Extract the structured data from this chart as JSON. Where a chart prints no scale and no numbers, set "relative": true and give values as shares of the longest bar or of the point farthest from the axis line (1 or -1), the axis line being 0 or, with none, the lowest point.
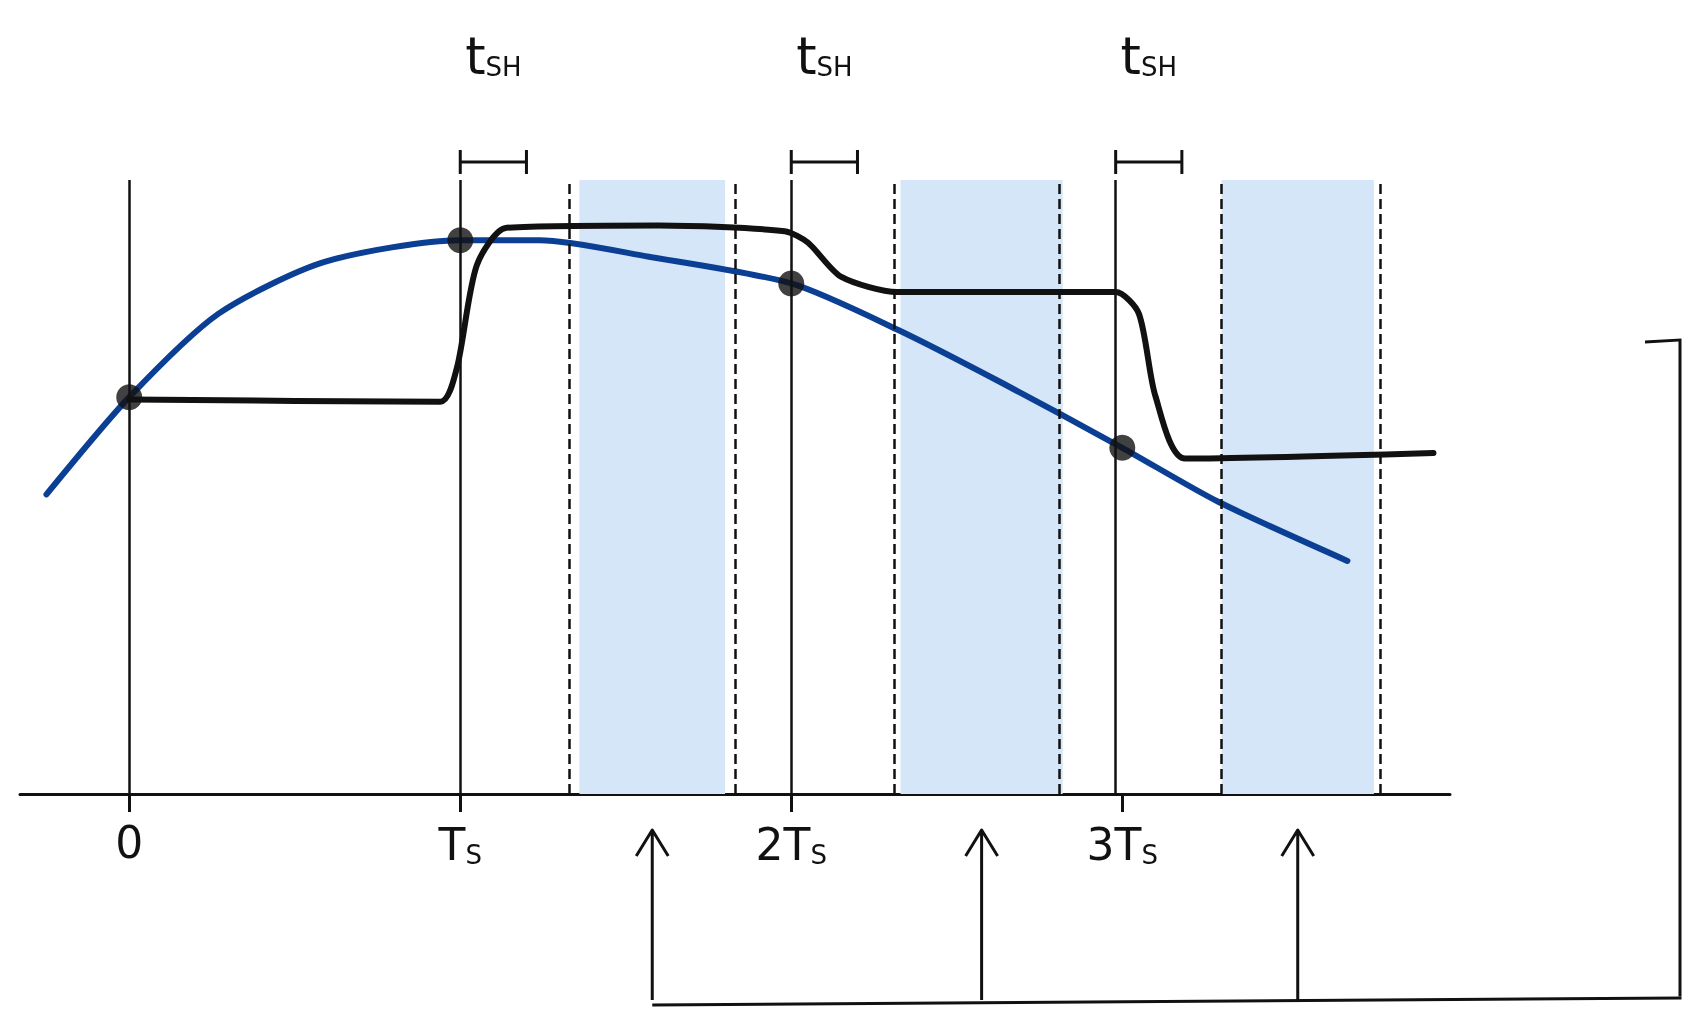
{
  "chart_data": {
    "type": "line",
    "relative": true,
    "grid": false,
    "marker": "none",
    "xlim": [
      -0.33,
      3.99
    ],
    "xticks": [
      {
        "value": 0,
        "label": "0"
      },
      {
        "value": 1,
        "label": "T$_{S}$"
      },
      {
        "value": 2,
        "label": "2T$_{S}$"
      },
      {
        "value": 3,
        "label": "3T$_{S}$"
      }
    ],
    "series": [
      {
        "color": "#0b3f94",
        "x": [
          -0.25,
          0,
          0.27,
          0.59,
          1.0,
          1.24,
          1.57,
          2.0,
          2.32,
          2.64,
          3.0,
          3.29,
          3.68
        ],
        "values": [
          0.527,
          0.698,
          0.845,
          0.936,
          0.974,
          0.974,
          0.945,
          0.898,
          0.817,
          0.722,
          0.609,
          0.514,
          0.41
        ]
      },
      {
        "color": "#111111",
        "x": [
          0,
          0.94,
          0.99,
          1.05,
          1.14,
          1.6,
          1.98,
          2.05,
          2.15,
          2.32,
          2.98,
          3.05,
          3.1,
          3.19,
          3.94
        ],
        "values": [
          0.694,
          0.69,
          0.75,
          0.93,
          0.996,
          1.0,
          0.99,
          0.97,
          0.91,
          0.883,
          0.883,
          0.845,
          0.7,
          0.59,
          0.6
        ]
      },
      {
        "type": "scatter",
        "marker": "circle",
        "color": "#111111",
        "x": [
          0,
          1,
          2,
          3
        ],
        "values": [
          0.698,
          0.974,
          0.898,
          0.609
        ]
      }
    ],
    "ref_lines": [
      {
        "axis": "x",
        "value": 0,
        "line_style": "solid"
      },
      {
        "axis": "x",
        "value": 1,
        "line_style": "solid"
      },
      {
        "axis": "x",
        "value": 2,
        "line_style": "solid"
      },
      {
        "axis": "x",
        "value": 2.98,
        "line_style": "solid"
      },
      {
        "axis": "x",
        "value": 1.33,
        "line_style": "dashed"
      },
      {
        "axis": "x",
        "value": 1.83,
        "line_style": "dashed"
      },
      {
        "axis": "x",
        "value": 2.31,
        "line_style": "dashed"
      },
      {
        "axis": "x",
        "value": 2.81,
        "line_style": "dashed"
      },
      {
        "axis": "x",
        "value": 3.3,
        "line_style": "dashed"
      },
      {
        "axis": "x",
        "value": 3.78,
        "line_style": "dashed"
      }
    ],
    "bands": [
      {
        "axis": "x",
        "from": 1.36,
        "to": 1.8,
        "color": "#d4e6f7"
      },
      {
        "axis": "x",
        "from": 2.33,
        "to": 2.82,
        "color": "#d4e6f7"
      },
      {
        "axis": "x",
        "from": 3.3,
        "to": 3.76,
        "color": "#d4e6f7"
      }
    ],
    "annotations": [
      "t$_{SH}$",
      "t$_{SH}$",
      "t$_{SH}$"
    ]
  }
}
